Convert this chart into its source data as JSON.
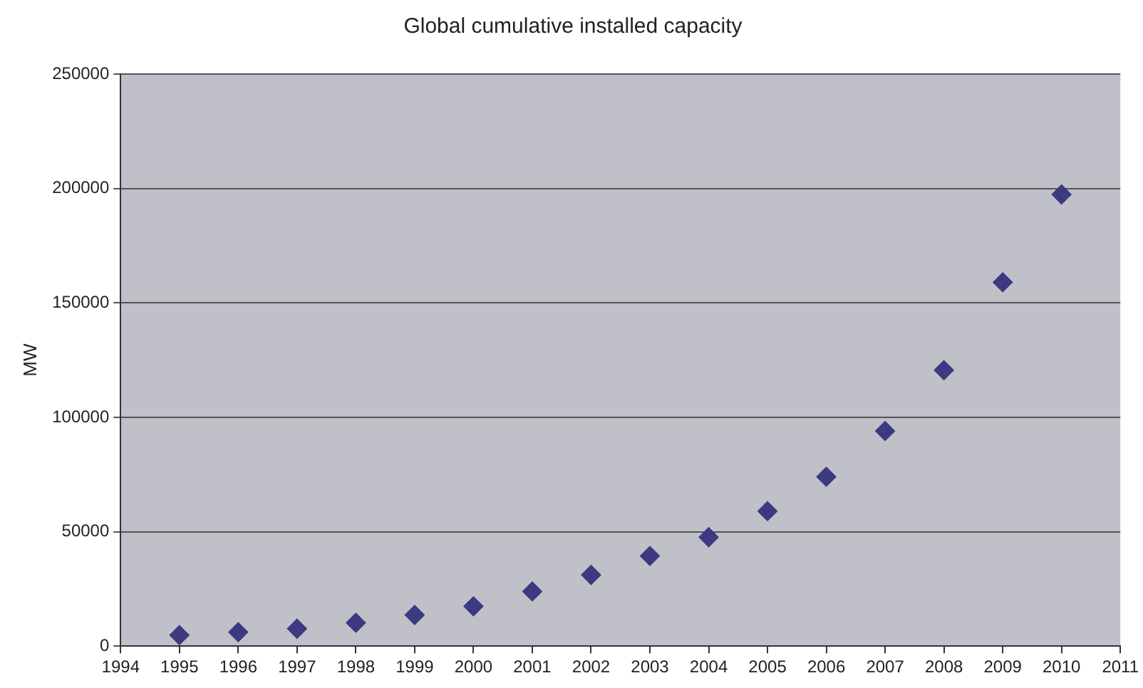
{
  "chart_data": {
    "type": "scatter",
    "title": "Global cumulative installed capacity",
    "ylabel": "MW",
    "x": [
      1995,
      1996,
      1997,
      1998,
      1999,
      2000,
      2001,
      2002,
      2003,
      2004,
      2005,
      2006,
      2007,
      2008,
      2009,
      2010
    ],
    "series": [
      {
        "color": "#3c3a80",
        "values": [
          4800,
          6100,
          7600,
          10200,
          13600,
          17400,
          23900,
          31100,
          39400,
          47600,
          59000,
          74000,
          94000,
          120600,
          159000,
          197400
        ]
      }
    ],
    "xlim": [
      1994,
      2011
    ],
    "xticks": [
      1994,
      1995,
      1996,
      1997,
      1998,
      1999,
      2000,
      2001,
      2002,
      2003,
      2004,
      2005,
      2006,
      2007,
      2008,
      2009,
      2010,
      2011
    ],
    "ylim": [
      0,
      250000
    ],
    "yticks": [
      0,
      50000,
      100000,
      150000,
      200000,
      250000
    ],
    "grid": "y",
    "marker": "diamond",
    "legend": false
  }
}
